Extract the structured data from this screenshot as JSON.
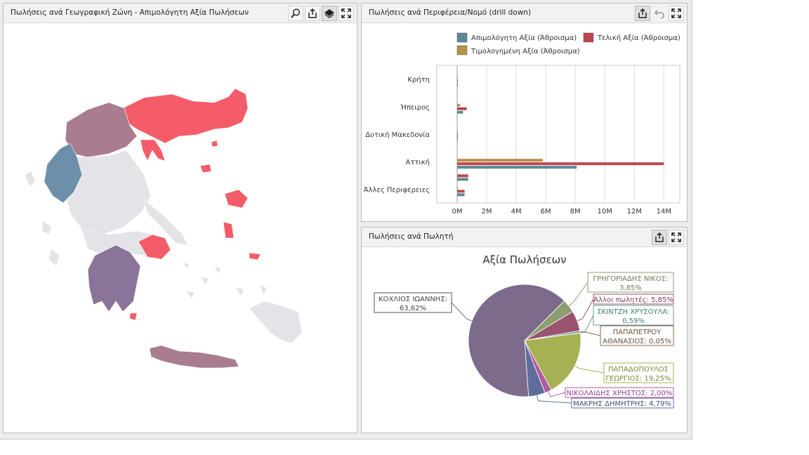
{
  "panels": {
    "map": {
      "title": "Πωλήσεις ανά Γεωγραφική Ζώνη - Απιμολόγητη Αξία Πωλήσεων",
      "tools": [
        "zoom-icon",
        "export-icon",
        "layers-icon",
        "maximize-icon"
      ]
    },
    "bars": {
      "title": "Πωλήσεις ανά Περιφέρεια/Νομό (drill down)",
      "tools": [
        "export-icon",
        "undo-icon",
        "maximize-icon"
      ]
    },
    "pie": {
      "title": "Πωλήσεις ανά Πωλητή",
      "tools": [
        "export-icon",
        "maximize-icon"
      ]
    }
  },
  "colors": {
    "series1": "#5b8a95",
    "series2": "#c0454f",
    "series3": "#b5914a",
    "map_red": "#f45c6a",
    "map_mauve": "#a97c90",
    "map_purple": "#8a7499",
    "map_blue": "#6e8fa9",
    "map_grey": "#e3e3e8"
  },
  "chart_data": [
    {
      "type": "bar",
      "orientation": "horizontal",
      "categories": [
        "Κρήτη",
        "Ήπειρος",
        "Δυτική Μακεδονία",
        "Αττική",
        "Άλλες Περιφέρειες"
      ],
      "series": [
        {
          "name": "Απιμολόγητη Αξία (Άθροισμα)",
          "values": [
            0.02,
            0.4,
            0.02,
            8.1,
            0.5
          ]
        },
        {
          "name": "Τελική Αξία (Άθροισμα)",
          "values": [
            0.02,
            0.65,
            0.02,
            14.0,
            0.5
          ]
        },
        {
          "name": "Τιμολογημένη Αξία (Άθροισμα)",
          "values": [
            0.01,
            0.2,
            0.01,
            5.8,
            0.0
          ]
        }
      ],
      "extra_bars_other": {
        "Απιμολόγητη": 0.75,
        "Τελική": 0.75
      },
      "xlim": [
        0,
        15
      ],
      "xticks": [
        "0M",
        "2M",
        "4M",
        "6M",
        "8M",
        "10M",
        "12M",
        "14M"
      ],
      "grid": true,
      "legend_position": "top-right"
    },
    {
      "type": "pie",
      "title": "Αξία Πωλήσεων",
      "slices": [
        {
          "label": "ΓΡΗΓΟΡΙΑΔΗΣ ΝΙΚΟΣ: 3,85%",
          "value": 3.85,
          "color": "#8d9e6e"
        },
        {
          "label": "Άλλοι πωλητές: 5,85%",
          "value": 5.85,
          "color": "#9a5470"
        },
        {
          "label": "ΣΚΙΝΤΖΗ ΧΡΥΣΟΥΛΑ: 0,59%",
          "value": 0.59,
          "color": "#6a9a90"
        },
        {
          "label": "ΠΑΠΑΠΕΤΡΟΥ ΑΘΑΝΑΣΙΟΣ: 0,05%",
          "value": 0.05,
          "color": "#8a6a50"
        },
        {
          "label": "ΠΑΠΑΔΟΠΟΥΛΟΣ ΓΕΩΡΓΙΟΣ: 19,25%",
          "value": 19.25,
          "color": "#a7b153"
        },
        {
          "label": "ΝΙΚΟΛΑΙΔΗΣ ΧΡΗΣΤΟΣ: 2,00%",
          "value": 2.0,
          "color": "#b05aa6"
        },
        {
          "label": "ΜΑΚΡΗΣ ΔΗΜΗΤΡΗΣ: 4,79%",
          "value": 4.79,
          "color": "#5f6d9a"
        },
        {
          "label": "ΚΟΧΛΙΟΣ ΙΩΑΝΝΗΣ: 63,62%",
          "value": 63.62,
          "color": "#7d6b8b"
        }
      ]
    }
  ],
  "callouts": {
    "grigoriadis": [
      "ΓΡΗΓΟΡΙΑΔΗΣ ΝΙΚΟΣ:",
      "3,85%"
    ],
    "alloi": [
      "Άλλοι πωλητές: 5,85%"
    ],
    "skintzi": [
      "ΣΚΙΝΤΖΗ ΧΡΥΣΟΥΛΑ:",
      "0,59%"
    ],
    "papapetrou": [
      "ΠΑΠΑΠΕΤΡΟΥ",
      "ΑΘΑΝΑΣΙΟΣ: 0,05%"
    ],
    "papadopoulos": [
      "ΠΑΠΑΔΟΠΟΥΛΟΣ",
      "ΓΕΩΡΓΙΟΣ: 19,25%"
    ],
    "nikolaidis": [
      "ΝΙΚΟΛΑΙΔΗΣ ΧΡΗΣΤΟΣ: 2,00%"
    ],
    "makris": [
      "ΜΑΚΡΗΣ ΔΗΜΗΤΡΗΣ: 4,79%"
    ],
    "kochlios": [
      "ΚΟΧΛΙΟΣ ΙΩΑΝΝΗΣ:",
      "63,62%"
    ]
  }
}
